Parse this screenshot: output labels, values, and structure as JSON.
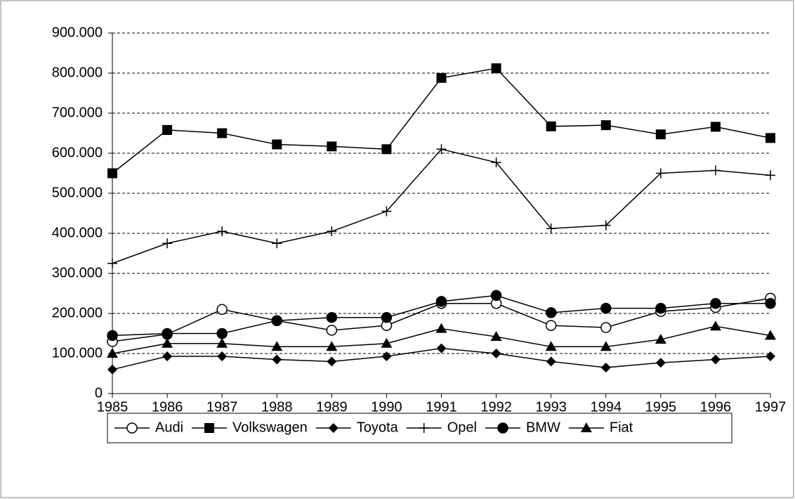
{
  "chart_data": {
    "type": "line",
    "categories": [
      "1985",
      "1986",
      "1987",
      "1988",
      "1989",
      "1990",
      "1991",
      "1992",
      "1993",
      "1994",
      "1995",
      "1996",
      "1997"
    ],
    "series": [
      {
        "name": "Audi",
        "color": "#000000",
        "values": [
          130000,
          148000,
          210000,
          182000,
          158000,
          170000,
          225000,
          225000,
          170000,
          165000,
          205000,
          215000,
          238000
        ]
      },
      {
        "name": "Volkswagen",
        "color": "#000000",
        "values": [
          550000,
          658000,
          650000,
          622000,
          617000,
          610000,
          788000,
          812000,
          667000,
          670000,
          647000,
          666000,
          638000
        ]
      },
      {
        "name": "Toyota",
        "color": "#000000",
        "values": [
          60000,
          93000,
          93000,
          85000,
          80000,
          93000,
          113000,
          100000,
          80000,
          65000,
          77000,
          85000,
          93000
        ]
      },
      {
        "name": "Opel",
        "color": "#000000",
        "values": [
          325000,
          375000,
          405000,
          375000,
          405000,
          455000,
          610000,
          577000,
          412000,
          420000,
          550000,
          557000,
          545000
        ]
      },
      {
        "name": "BMW",
        "color": "#000000",
        "values": [
          145000,
          150000,
          150000,
          182000,
          190000,
          190000,
          230000,
          245000,
          202000,
          213000,
          213000,
          225000,
          225000
        ]
      },
      {
        "name": "Fiat",
        "color": "#000000",
        "values": [
          100000,
          125000,
          125000,
          117000,
          117000,
          125000,
          162000,
          142000,
          117000,
          117000,
          135000,
          168000,
          145000
        ]
      }
    ],
    "ylim": [
      0,
      900000
    ],
    "yticks": [
      0,
      {
        "value": 100000,
        "label": "100.000"
      },
      {
        "value": 200000,
        "label": "200.000"
      },
      {
        "value": 300000,
        "label": "300.000"
      },
      {
        "value": 400000,
        "label": "400.000"
      },
      {
        "value": 500000,
        "label": "500.000"
      },
      {
        "value": 600000,
        "label": "600.000"
      },
      {
        "value": 700000,
        "label": "700.000"
      },
      {
        "value": 800000,
        "label": "800.000"
      },
      {
        "value": 900000,
        "label": "900.000"
      }
    ],
    "grid": true,
    "legend": "bottom"
  }
}
